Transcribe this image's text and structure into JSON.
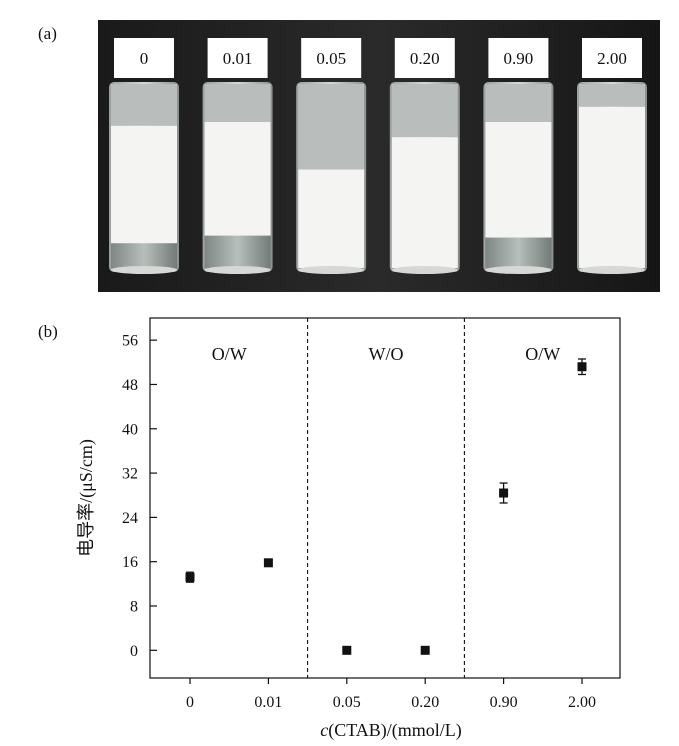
{
  "panel_a": {
    "label": "(a)",
    "vials": [
      {
        "label": "0",
        "clear_bottom": 0.13,
        "foam_top": 0.22
      },
      {
        "label": "0.01",
        "clear_bottom": 0.17,
        "foam_top": 0.2
      },
      {
        "label": "0.05",
        "clear_bottom": 0.0,
        "foam_top": 0.45
      },
      {
        "label": "0.20",
        "clear_bottom": 0.0,
        "foam_top": 0.28
      },
      {
        "label": "0.90",
        "clear_bottom": 0.16,
        "foam_top": 0.2
      },
      {
        "label": "2.00",
        "clear_bottom": 0.0,
        "foam_top": 0.12
      }
    ]
  },
  "panel_b": {
    "label": "(b)"
  },
  "chart_data": {
    "type": "scatter",
    "title": "",
    "xlabel_italic": "c",
    "xlabel_rest": "(CTAB)/(mmol/L)",
    "ylabel": "电导率/(μS/cm)",
    "categories": [
      "0",
      "0.01",
      "0.05",
      "0.20",
      "0.90",
      "2.00"
    ],
    "values": [
      13.2,
      15.8,
      0,
      0,
      28.4,
      51.2
    ],
    "errors": [
      0.9,
      0.4,
      0.2,
      0.2,
      1.8,
      1.4
    ],
    "ylim": [
      -5,
      60
    ],
    "yticks": [
      0,
      8,
      16,
      24,
      32,
      40,
      48,
      56
    ],
    "regions": [
      {
        "label": "O/W",
        "from": 0,
        "to": 1
      },
      {
        "label": "W/O",
        "from": 2,
        "to": 3
      },
      {
        "label": "O/W",
        "from": 4,
        "to": 5
      }
    ],
    "dividers_after": [
      1,
      3
    ],
    "grid": false,
    "legend": "none"
  }
}
